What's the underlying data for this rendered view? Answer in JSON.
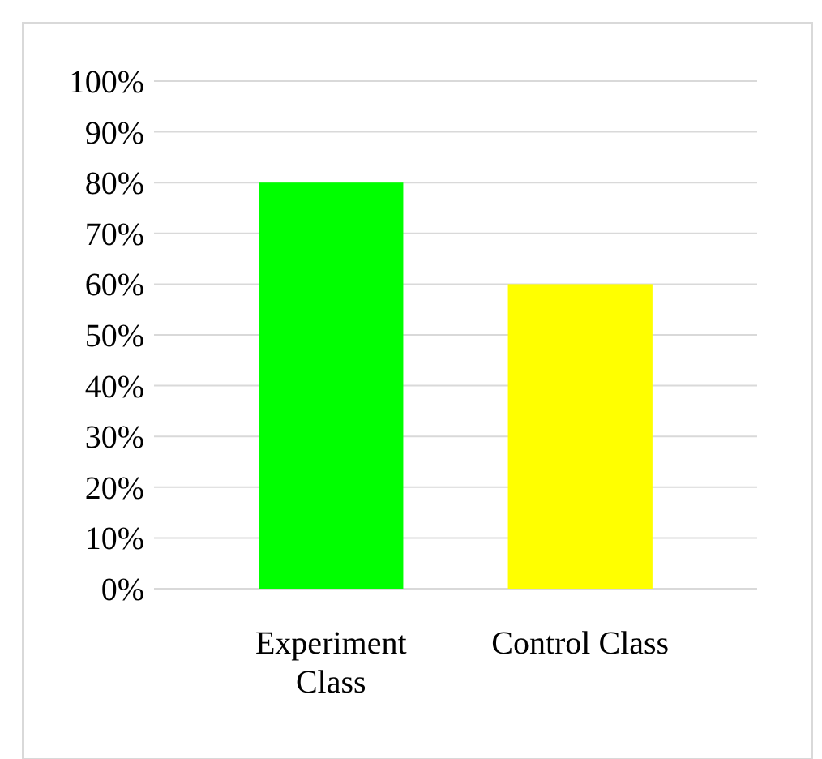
{
  "chart_data": {
    "type": "bar",
    "categories": [
      "Experiment Class",
      "Control Class"
    ],
    "values": [
      80,
      60
    ],
    "colors": [
      "#00ff00",
      "#ffff00"
    ],
    "ylim": [
      0,
      100
    ],
    "yticks": [
      {
        "value": 0,
        "label": "0%"
      },
      {
        "value": 10,
        "label": "10%"
      },
      {
        "value": 20,
        "label": "20%"
      },
      {
        "value": 30,
        "label": "30%"
      },
      {
        "value": 40,
        "label": "40%"
      },
      {
        "value": 50,
        "label": "50%"
      },
      {
        "value": 60,
        "label": "60%"
      },
      {
        "value": 70,
        "label": "70%"
      },
      {
        "value": 80,
        "label": "80%"
      },
      {
        "value": 90,
        "label": "90%"
      },
      {
        "value": 100,
        "label": "100%"
      }
    ],
    "grid": true
  }
}
